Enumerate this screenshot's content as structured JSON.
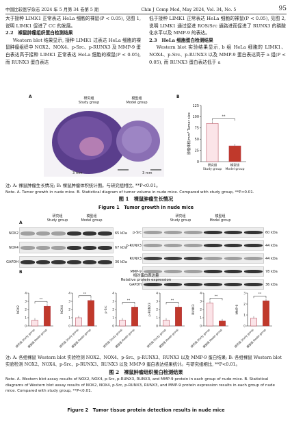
{
  "header": {
    "journal_cn": "中国比较医学杂志 2024 年 5 月第 34 卷第 5 期",
    "journal_en": "Chin J Comp Med, May 2024, Vol. 34, No. 5",
    "page": "95"
  },
  "text": {
    "left_p1": "大于接种 LIMK1 正常表达 HeLa 细胞的裸鼠(P < 0.05), 见图 1, 说明 LIMK1 促进了 CC 的发展。",
    "left_sec": "2.2　裸鼠肿瘤组织蛋白检测结果",
    "left_p2": "Western blot 结果显示, 接种 LIMK1 过表达 HeLa 细胞的裸鼠肿瘤组织中 NOX2、NOX4、p-Src、p-RUNX3 及 MMP-9 蛋白表达高于接种 LIMK1 正常表达 HeLa 细胞的裸鼠(P < 0.05), 而 RUNX3 蛋白表达",
    "right_p1": "低于接种 LIMK1 正常表达 HeLa 细胞的裸鼠(P < 0.05), 见图 2, 说明 LIMK1 通过促进 ROS/Src 通路进而促进了 RUNX3 的磷酸化水平以及 MMP-9 的表达。",
    "right_sec": "2.3　HeLa 细胞蛋白检测结果",
    "right_p2": "Western blot 实验结果显示, b 组 HeLa 细胞的 LIMK1、NOX4、p-Src、p-RUNX3 以及 MMP-9 蛋白表达高于 a 组(P < 0.05), 而 RUNX3 蛋白表达低于 a"
  },
  "fig1": {
    "panel_a": "A",
    "panel_b": "B",
    "study_cn": "研究组",
    "study_en": "Study group",
    "model_cn": "模型组",
    "model_en": "Model group",
    "scale": "3 mm",
    "cap_cn": "注: A: 裸鼠肿瘤生长情况; B: 裸鼠肿瘤体积统计图。与研究组相比, **P<0.01。",
    "cap_en": "Note. A. Tumor growth in nude mice. B. Statistical diagram of tumor volume in nude mice. Compared with study group, **P<0.01.",
    "title_cn": "图 1　裸鼠肿瘤生长情况",
    "title_en": "Figure 1　Tumor growth in nude mice"
  },
  "fig1_chart": {
    "chart_data": {
      "type": "bar",
      "categories": [
        "研究组 Study group",
        "模型组 Model group"
      ],
      "values": [
        85,
        35
      ],
      "ylabel": "肿瘤体积/mm³ Tumor size",
      "ylim": [
        0,
        125
      ],
      "yticks": [
        0,
        25,
        50,
        75,
        100,
        125
      ],
      "annotation": "**"
    }
  },
  "fig2": {
    "panel_a": "A",
    "panel_b": "B",
    "study_cn": "研究组",
    "study_en": "Study group",
    "model_cn": "模型组",
    "model_en": "Model group",
    "blots_left": [
      {
        "name": "NOX2",
        "kda": "65 kDa"
      },
      {
        "name": "NOX4",
        "kda": "67 kDa"
      },
      {
        "name": "GAPDH",
        "kda": "36 kDa"
      }
    ],
    "blots_right": [
      {
        "name": "p-Src",
        "kda": "60 kDa"
      },
      {
        "name": "p-RUNX3",
        "kda": "44 kDa"
      },
      {
        "name": "RUNX3",
        "kda": "44 kDa"
      },
      {
        "name": "MMP-9",
        "kda": "78 kDa"
      },
      {
        "name": "GAPDH",
        "kda": "36 kDa"
      }
    ],
    "rel_title_cn": "相对蛋白表达量",
    "rel_title_en": "Relative protein expression",
    "cap_cn": "注: A: 各组裸鼠 Western blot 实验检测 NOX2、NOX4、p-Src、p-RUNX3、RUNX3 以及 MMP-9 蛋白结果; B: 各组裸鼠 Western blot 实验检测 NOX2、NOX4、p-Src、p-RUNX3、RUNX3 以及 MMP-9 蛋白表达结果统计。与研究组相比, **P<0.01。",
    "cap_en": "Note. A. Western blot assay results of NOX2, NOX4, p-Src, p-RUNX3, RUNX3, and MMP-9 protein in each group of nude mice. B. Statistical diagrams of Western blot assay results of NOX2, NOX4, p-Src, p-RUNX3, RUNX3, and MMP-9 protein expression results in each group of nude mice. Compared with study group, **P<0.01.",
    "title_cn": "图 2　裸鼠肿瘤组织蛋白检测结果",
    "title_en": "Figure 2　Tumor tissue protein detection results in nude mice"
  },
  "fig2_charts": {
    "chart_data": [
      {
        "type": "bar",
        "ylabel": "NOX2",
        "categories": [
          "研究组 Study group",
          "模型组 Model group"
        ],
        "values": [
          0.7,
          2.4
        ],
        "ylim": [
          0,
          4
        ],
        "yticks": [
          0,
          1,
          2,
          3,
          4
        ],
        "annotation": "**"
      },
      {
        "type": "bar",
        "ylabel": "NOX4",
        "categories": [
          "研究组 Study group",
          "模型组 Model group"
        ],
        "values": [
          1.0,
          3.1
        ],
        "ylim": [
          0,
          4
        ],
        "yticks": [
          0,
          1,
          2,
          3,
          4
        ],
        "annotation": "**"
      },
      {
        "type": "bar",
        "ylabel": "p-Src",
        "categories": [
          "研究组 Study group",
          "模型组 Model group"
        ],
        "values": [
          0.7,
          2.3
        ],
        "ylim": [
          0,
          4
        ],
        "yticks": [
          0,
          1,
          2,
          3,
          4
        ],
        "annotation": "**"
      },
      {
        "type": "bar",
        "ylabel": "p-RUNX3",
        "categories": [
          "研究组 Study group",
          "模型组 Model group"
        ],
        "values": [
          0.7,
          2.3
        ],
        "ylim": [
          0,
          4
        ],
        "yticks": [
          0,
          1,
          2,
          3,
          4
        ],
        "annotation": "**"
      },
      {
        "type": "bar",
        "ylabel": "RUNX3",
        "categories": [
          "研究组 Study group",
          "模型组 Model group"
        ],
        "values": [
          2.8,
          0.6
        ],
        "ylim": [
          0,
          4
        ],
        "yticks": [
          0,
          1,
          2,
          3,
          4
        ],
        "annotation": "**"
      },
      {
        "type": "bar",
        "ylabel": "MMP-9",
        "categories": [
          "研究组 Study group",
          "模型组 Model group"
        ],
        "values": [
          0.7,
          2.3
        ],
        "ylim": [
          0,
          3
        ],
        "yticks": [
          0,
          1,
          2,
          3
        ],
        "annotation": "**"
      }
    ]
  }
}
